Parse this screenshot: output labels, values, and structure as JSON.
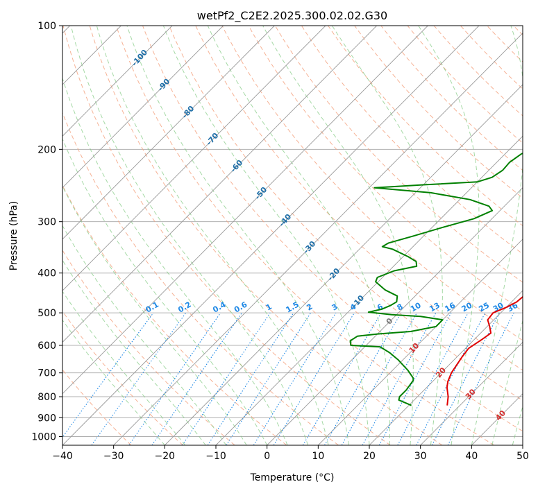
{
  "chart_data": {
    "type": "line",
    "title": "wetPf2_C2E2.2025.300.02.02.G30",
    "xlabel": "Temperature (°C)",
    "ylabel": "Pressure (hPa)",
    "xlim": [
      -40,
      50
    ],
    "ylim": [
      1050,
      100
    ],
    "y_scale": "log",
    "x_ticks": [
      -40,
      -30,
      -20,
      -10,
      0,
      10,
      20,
      30,
      40,
      50
    ],
    "y_ticks": [
      100,
      200,
      300,
      400,
      500,
      600,
      700,
      800,
      900,
      1000
    ],
    "colors": {
      "temperature": "#e00000",
      "dewpoint": "#008000",
      "dry_adiabat": "#f4a582",
      "moist_adiabat": "#7fc97f",
      "mixing_ratio": "#1e88e5",
      "isotherm": "#999999"
    },
    "series": [
      {
        "name": "Temperature",
        "color": "#e00000",
        "points": [
          [
            27.5,
            840
          ],
          [
            26.0,
            800
          ],
          [
            24.0,
            760
          ],
          [
            23.0,
            735
          ],
          [
            22.0,
            700
          ],
          [
            21.0,
            640
          ],
          [
            20.6,
            610
          ],
          [
            21.5,
            580
          ],
          [
            22.0,
            560
          ],
          [
            20.5,
            540
          ],
          [
            18.8,
            520
          ],
          [
            18.5,
            500
          ],
          [
            20.0,
            485
          ],
          [
            21.0,
            470
          ],
          [
            21.3,
            450
          ],
          [
            21.0,
            430
          ],
          [
            19.5,
            410
          ],
          [
            18.0,
            395
          ],
          [
            16.5,
            380
          ],
          [
            14.5,
            360
          ],
          [
            12.5,
            340
          ],
          [
            10.0,
            320
          ],
          [
            7.5,
            300
          ],
          [
            5.5,
            285
          ],
          [
            4.5,
            275
          ],
          [
            4.4,
            260
          ],
          [
            4.0,
            250
          ],
          [
            2.5,
            240
          ],
          [
            1.0,
            225
          ],
          [
            -0.5,
            210
          ],
          [
            -2.0,
            195
          ],
          [
            -3.5,
            175
          ],
          [
            -4.0,
            162
          ],
          [
            -3.5,
            155
          ],
          [
            -2.5,
            145
          ],
          [
            -2.2,
            140
          ],
          [
            -1.5,
            133
          ],
          [
            0.5,
            125
          ],
          [
            2.5,
            118
          ],
          [
            3.8,
            112
          ],
          [
            4.5,
            105
          ],
          [
            4.8,
            100
          ]
        ]
      },
      {
        "name": "Dewpoint",
        "color": "#008000",
        "points": [
          [
            20.5,
            840
          ],
          [
            17.0,
            815
          ],
          [
            16.5,
            800
          ],
          [
            16.5,
            770
          ],
          [
            16.0,
            730
          ],
          [
            15.5,
            720
          ],
          [
            13.0,
            690
          ],
          [
            9.0,
            650
          ],
          [
            6.0,
            625
          ],
          [
            3.0,
            605
          ],
          [
            -3.0,
            600
          ],
          [
            -4.0,
            585
          ],
          [
            -3.5,
            570
          ],
          [
            0.0,
            563
          ],
          [
            6.0,
            555
          ],
          [
            10.0,
            540
          ],
          [
            10.0,
            520
          ],
          [
            5.0,
            510
          ],
          [
            -1.0,
            505
          ],
          [
            -6.0,
            498
          ],
          [
            -4.0,
            490
          ],
          [
            -3.0,
            480
          ],
          [
            -2.5,
            470
          ],
          [
            -3.5,
            455
          ],
          [
            -7.0,
            440
          ],
          [
            -10.5,
            420
          ],
          [
            -11.0,
            410
          ],
          [
            -9.0,
            395
          ],
          [
            -5.5,
            385
          ],
          [
            -6.5,
            375
          ],
          [
            -9.0,
            365
          ],
          [
            -13.5,
            350
          ],
          [
            -16.0,
            345
          ],
          [
            -15.5,
            338
          ],
          [
            -12.0,
            325
          ],
          [
            -8.0,
            310
          ],
          [
            -3.5,
            295
          ],
          [
            -1.5,
            282
          ],
          [
            -3.0,
            275
          ],
          [
            -8.0,
            265
          ],
          [
            -17.0,
            255
          ],
          [
            -29.0,
            248
          ],
          [
            -20.0,
            244
          ],
          [
            -10.0,
            240
          ],
          [
            -8.0,
            234
          ],
          [
            -7.3,
            225
          ],
          [
            -7.5,
            215
          ],
          [
            -6.8,
            205
          ],
          [
            -3.5,
            195
          ],
          [
            -2.7,
            185
          ],
          [
            -2.3,
            170
          ],
          [
            -2.0,
            160
          ],
          [
            -1.8,
            150
          ],
          [
            -2.2,
            140
          ],
          [
            -2.5,
            130
          ],
          [
            -3.5,
            120
          ],
          [
            -3.0,
            112
          ],
          [
            -1.0,
            106
          ],
          [
            0.5,
            100
          ]
        ]
      }
    ],
    "dry_adiabat_labels": [
      "-100",
      "-90",
      "-80",
      "-70",
      "-60",
      "-50",
      "-40",
      "-30",
      "-20",
      "-10"
    ],
    "moist_adiabat_labels": [
      "0",
      "10",
      "20",
      "30",
      "40"
    ],
    "mixing_ratio_labels": [
      "0.1",
      "0.2",
      "0.4",
      "0.6",
      "1",
      "1.5",
      "2",
      "3",
      "4",
      "6",
      "8",
      "10",
      "13",
      "16",
      "20",
      "25",
      "30",
      "36"
    ]
  }
}
